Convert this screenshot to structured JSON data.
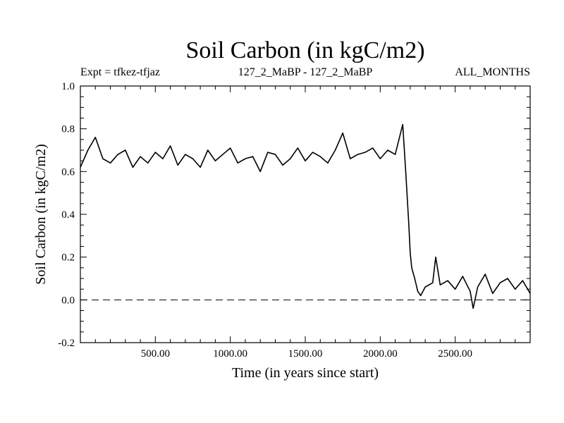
{
  "header": {
    "title": "Soil Carbon (in kgC/m2)",
    "left": "Expt = tfkez-tfjaz",
    "center": "127_2_MaBP - 127_2_MaBP",
    "right": "ALL_MONTHS"
  },
  "chart_data": {
    "type": "line",
    "title": "Soil Carbon (in kgC/m2)",
    "xlabel": "Time (in years since start)",
    "ylabel": "Soil Carbon (in kgC/m2)",
    "xlim": [
      0,
      3000
    ],
    "ylim": [
      -0.2,
      1.0
    ],
    "xticks": [
      500,
      1000,
      1500,
      2000,
      2500
    ],
    "xtick_labels": [
      "500.00",
      "1000.00",
      "1500.00",
      "2000.00",
      "2500.00"
    ],
    "yticks": [
      -0.2,
      0.0,
      0.2,
      0.4,
      0.6,
      0.8,
      1.0
    ],
    "ytick_labels": [
      "-0.2",
      "0.0",
      "0.2",
      "0.4",
      "0.6",
      "0.8",
      "1.0"
    ],
    "reference_line": {
      "y": 0.0,
      "style": "dashed"
    },
    "grid": false,
    "series": [
      {
        "x": [
          0,
          50,
          100,
          150,
          200,
          250,
          300,
          350,
          400,
          450,
          500,
          550,
          600,
          650,
          700,
          750,
          800,
          850,
          900,
          950,
          1000,
          1050,
          1100,
          1150,
          1200,
          1250,
          1300,
          1350,
          1400,
          1450,
          1500,
          1550,
          1600,
          1650,
          1700,
          1750,
          1800,
          1850,
          1900,
          1950,
          2000,
          2050,
          2100,
          2150,
          2170,
          2190,
          2200,
          2210,
          2230,
          2250,
          2270,
          2300,
          2350,
          2370,
          2400,
          2450,
          2500,
          2550,
          2600,
          2620,
          2650,
          2700,
          2750,
          2800,
          2850,
          2900,
          2950,
          3000
        ],
        "y": [
          0.62,
          0.7,
          0.76,
          0.66,
          0.64,
          0.68,
          0.7,
          0.62,
          0.67,
          0.64,
          0.69,
          0.66,
          0.72,
          0.63,
          0.68,
          0.66,
          0.62,
          0.7,
          0.65,
          0.68,
          0.71,
          0.64,
          0.66,
          0.67,
          0.6,
          0.69,
          0.68,
          0.63,
          0.66,
          0.71,
          0.65,
          0.69,
          0.67,
          0.64,
          0.7,
          0.78,
          0.66,
          0.68,
          0.69,
          0.71,
          0.66,
          0.7,
          0.68,
          0.82,
          0.6,
          0.36,
          0.22,
          0.15,
          0.1,
          0.04,
          0.02,
          0.06,
          0.08,
          0.2,
          0.07,
          0.09,
          0.05,
          0.11,
          0.04,
          -0.04,
          0.06,
          0.12,
          0.03,
          0.08,
          0.1,
          0.05,
          0.09,
          0.03
        ]
      }
    ]
  }
}
